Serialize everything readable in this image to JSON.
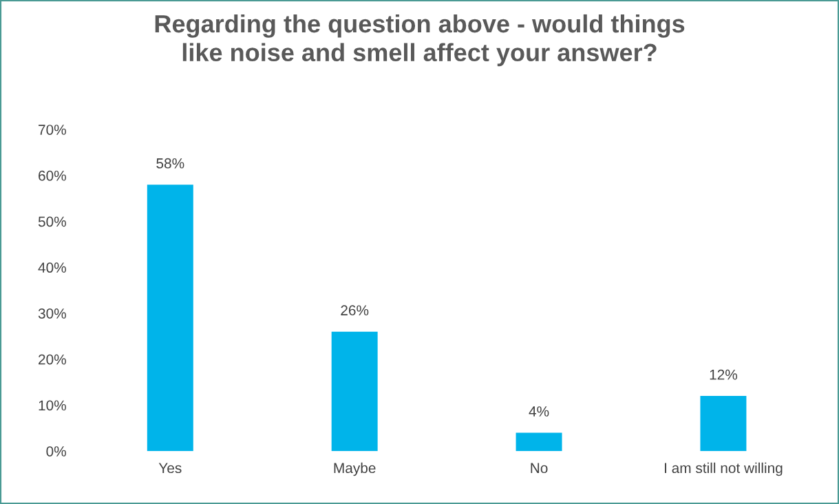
{
  "chart_data": {
    "type": "bar",
    "title": "Regarding the question above - would things\nlike noise and smell affect your answer?",
    "categories": [
      "Yes",
      "Maybe",
      "No",
      "I am still not willing"
    ],
    "values": [
      58,
      26,
      4,
      12
    ],
    "value_labels": [
      "58%",
      "26%",
      "4%",
      "12%"
    ],
    "color": "#00b4ea",
    "ylim": [
      0,
      70
    ],
    "yticks": [
      {
        "value": 0,
        "label": "0%"
      },
      {
        "value": 10,
        "label": "10%"
      },
      {
        "value": 20,
        "label": "20%"
      },
      {
        "value": 30,
        "label": "30%"
      },
      {
        "value": 40,
        "label": "40%"
      },
      {
        "value": 50,
        "label": "50%"
      },
      {
        "value": 60,
        "label": "60%"
      },
      {
        "value": 70,
        "label": "70%"
      }
    ],
    "grid": false,
    "legend": false
  }
}
